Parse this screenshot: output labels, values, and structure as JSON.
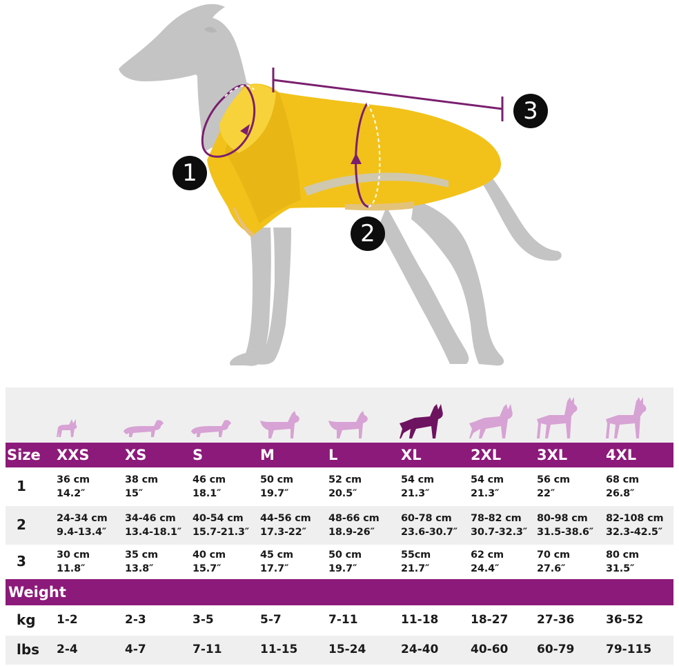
{
  "markers": {
    "m1": "1",
    "m2": "2",
    "m3": "3"
  },
  "colors": {
    "accent": "#8c1a7a",
    "dog_body": "#c4c4c4",
    "coat": "#f2c21a",
    "measure_line": "#7a1f6e",
    "pet_icon_light": "#d7a2d4",
    "pet_icon_selected": "#6e1360",
    "table_bg": "#efefef"
  },
  "size_table": {
    "header_label": "Size",
    "sizes": [
      "XXS",
      "XS",
      "S",
      "M",
      "L",
      "XL",
      "2XL",
      "3XL",
      "4XL"
    ],
    "pet_icons": [
      "chihuahua-icon",
      "dachshund-icon",
      "dachshund-icon",
      "terrier-icon",
      "terrier-icon",
      "shepherd-icon",
      "shepherd-icon",
      "great-dane-icon",
      "great-dane-icon"
    ],
    "rows": [
      {
        "label": "1",
        "cells": [
          [
            "36 cm",
            "14.2″"
          ],
          [
            "38 cm",
            "15″"
          ],
          [
            "46 cm",
            "18.1″"
          ],
          [
            "50 cm",
            "19.7″"
          ],
          [
            "52 cm",
            "20.5″"
          ],
          [
            "54 cm",
            "21.3″"
          ],
          [
            "54 cm",
            "21.3″"
          ],
          [
            "56 cm",
            "22″"
          ],
          [
            "68 cm",
            "26.8″"
          ]
        ]
      },
      {
        "label": "2",
        "cells": [
          [
            "24-34 cm",
            "9.4-13.4″"
          ],
          [
            "34-46 cm",
            "13.4-18.1″"
          ],
          [
            "40-54 cm",
            "15.7-21.3″"
          ],
          [
            "44-56 cm",
            "17.3-22″"
          ],
          [
            "48-66 cm",
            "18.9-26″"
          ],
          [
            "60-78 cm",
            "23.6-30.7″"
          ],
          [
            "78-82 cm",
            "30.7-32.3″"
          ],
          [
            "80-98 cm",
            "31.5-38.6″"
          ],
          [
            "82-108 cm",
            "32.3-42.5″"
          ]
        ]
      },
      {
        "label": "3",
        "cells": [
          [
            "30 cm",
            "11.8″"
          ],
          [
            "35 cm",
            "13.8″"
          ],
          [
            "40 cm",
            "15.7″"
          ],
          [
            "45 cm",
            "17.7″"
          ],
          [
            "50 cm",
            "19.7″"
          ],
          [
            "55cm",
            "21.7″"
          ],
          [
            "62 cm",
            "24.4″"
          ],
          [
            "70 cm",
            "27.6″"
          ],
          [
            "80 cm",
            "31.5″"
          ]
        ]
      }
    ]
  },
  "weight_table": {
    "header_label": "Weight",
    "rows": [
      {
        "label": "kg",
        "values": [
          "1-2",
          "2-3",
          "3-5",
          "5-7",
          "7-11",
          "11-18",
          "18-27",
          "27-36",
          "36-52"
        ]
      },
      {
        "label": "lbs",
        "values": [
          "2-4",
          "4-7",
          "7-11",
          "11-15",
          "15-24",
          "24-40",
          "40-60",
          "60-79",
          "79-115"
        ]
      }
    ]
  }
}
